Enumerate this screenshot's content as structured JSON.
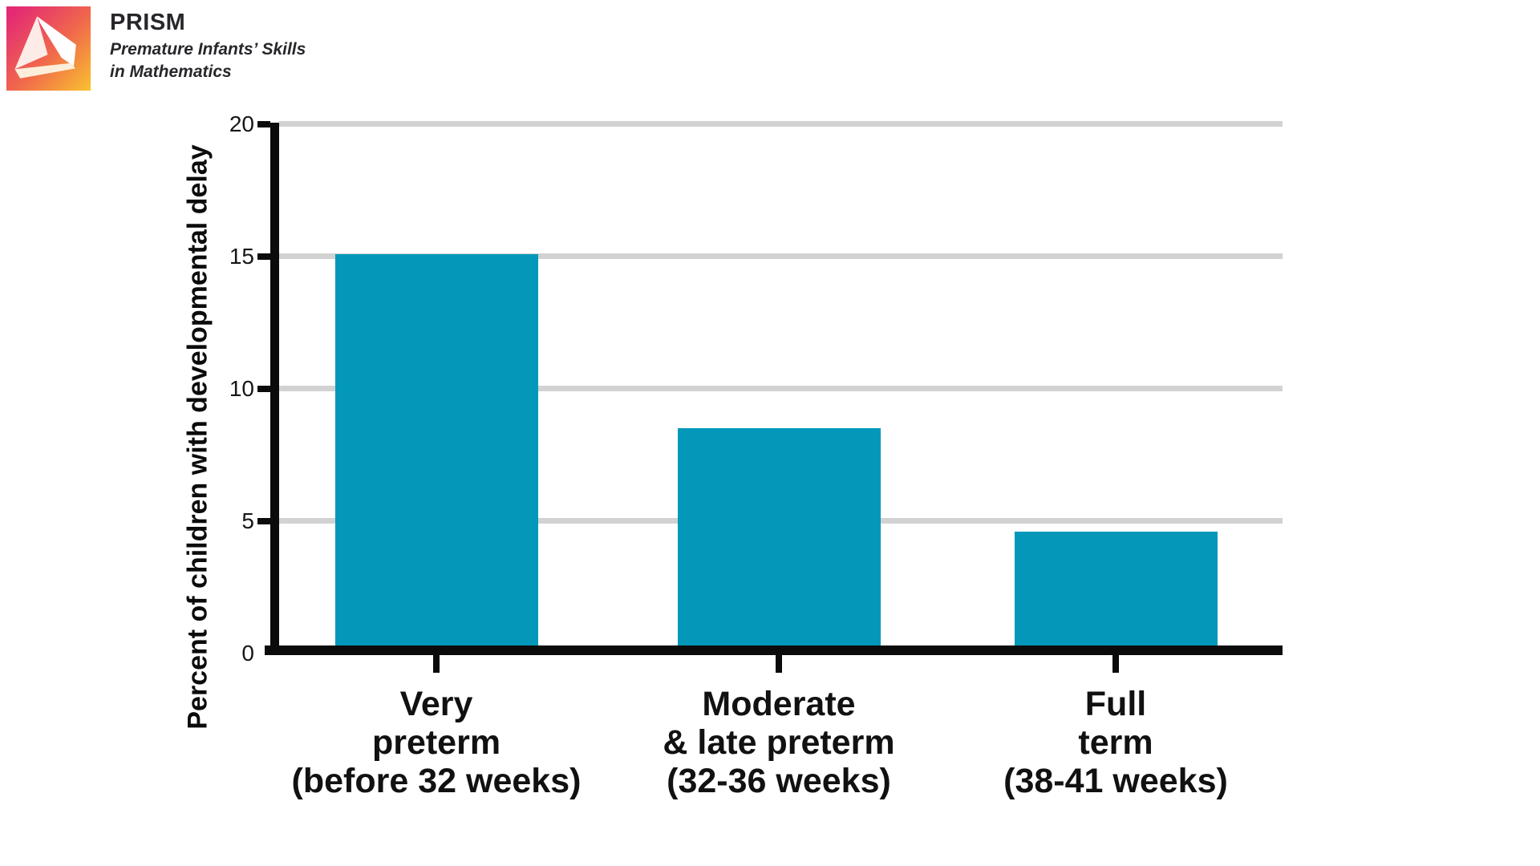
{
  "logo": {
    "title": "PRISM",
    "subtitle_line1": "Premature Infants’ Skills",
    "subtitle_line2": "in Mathematics",
    "icon": "prism-triangle-icon",
    "gradient_start": "#e42a74",
    "gradient_mid": "#f0694b",
    "gradient_end": "#f9c22f",
    "text_color": "#29262b"
  },
  "chart_data": {
    "type": "bar",
    "title": "",
    "ylabel": "Percent of children with developmental delay",
    "xlabel": "",
    "categories": [
      [
        "Very",
        "preterm",
        "(before 32 weeks)"
      ],
      [
        "Moderate",
        "& late preterm",
        "(32-36 weeks)"
      ],
      [
        "Full",
        "term",
        "(38-41 weeks)"
      ]
    ],
    "values": [
      15.1,
      8.5,
      4.6
    ],
    "ylim": [
      0,
      20
    ],
    "yticks": [
      0,
      5,
      10,
      15,
      20
    ],
    "grid": "horizontal",
    "legend_position": "none",
    "bar_color": "#0398ba",
    "gridline_color": "#d2d2d2",
    "axis_color": "#0b0b0b",
    "label_color": "#111111"
  }
}
